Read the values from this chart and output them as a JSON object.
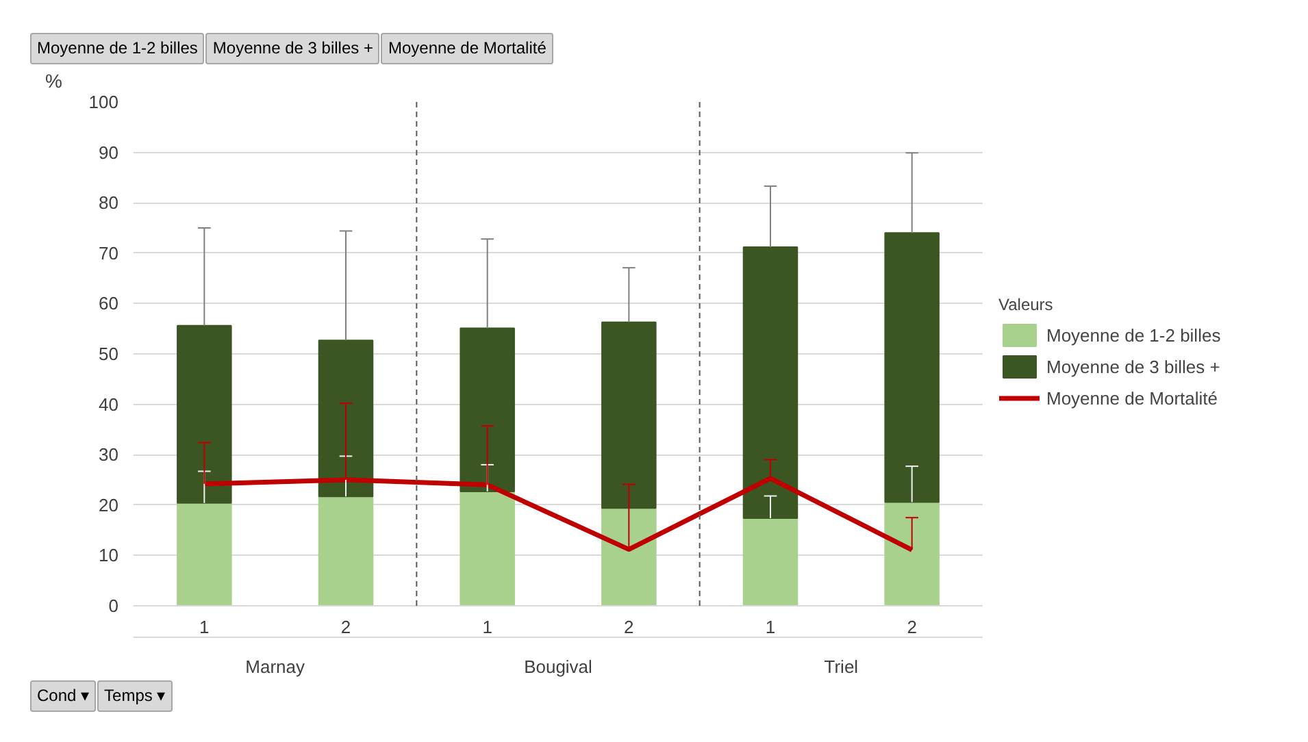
{
  "chart_data": {
    "type": "bar",
    "stacked": true,
    "ylabel": "%",
    "legend_title": "Valeurs",
    "legend": "right",
    "grid": "y",
    "categories": [
      "1",
      "2",
      "1",
      "2",
      "1",
      "2"
    ],
    "ylim": [
      0,
      100
    ],
    "yticks": [
      0,
      10,
      20,
      30,
      40,
      50,
      60,
      70,
      80,
      90,
      100
    ],
    "series": [
      {
        "name": "Moyenne de 1-2 billes",
        "color": "#a9d18e",
        "values": [
          20.4,
          21.7,
          22.7,
          19.4,
          17.4,
          20.6
        ],
        "errors": [
          [
            20.4,
            26.7
          ],
          [
            21.7,
            29.7
          ],
          [
            22.7,
            28.0
          ],
          null,
          [
            17.4,
            21.8
          ],
          [
            20.6,
            27.7
          ]
        ]
      },
      {
        "name": "Moyenne de 3 billes +",
        "color": "#3b5623",
        "values": [
          35.2,
          31.0,
          32.4,
          36.9,
          53.8,
          53.4
        ],
        "errors": [
          [
            55.6,
            75.0
          ],
          [
            52.7,
            74.4
          ],
          [
            55.1,
            72.8
          ],
          [
            56.3,
            67.1
          ],
          [
            71.2,
            83.3
          ],
          [
            74.0,
            89.9
          ]
        ]
      },
      {
        "name": "Moyenne de Mortalité",
        "type": "line",
        "color": "#c00000",
        "values": [
          24.2,
          25.0,
          24.0,
          11.2,
          25.3,
          11.1
        ],
        "errors": [
          [
            24.2,
            32.4
          ],
          [
            25.0,
            40.2
          ],
          [
            24.0,
            35.7
          ],
          [
            11.2,
            24.1
          ],
          [
            25.3,
            29.0
          ],
          [
            11.1,
            17.5
          ]
        ]
      }
    ],
    "annotations": [
      "Moyenne de 1-2 billes",
      "Moyenne de 3 billes +",
      "Moyenne de Mortalité",
      "Marnay",
      "Bougival",
      "Triel",
      "Cond ▾",
      "Temps ▾"
    ]
  }
}
